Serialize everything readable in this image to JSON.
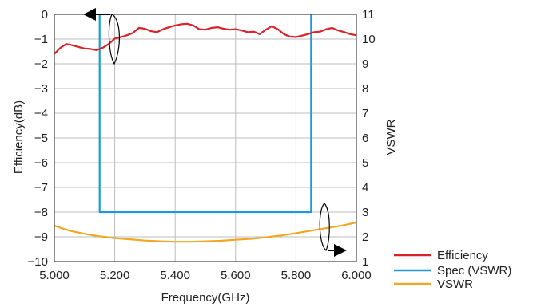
{
  "chart_data": {
    "type": "line",
    "xlabel": "Frequency(GHz)",
    "ylabel_left": "Efficiency(dB)",
    "ylabel_right": "VSWR",
    "xlim": [
      5.0,
      6.0
    ],
    "ylim_left": [
      -10,
      0
    ],
    "ylim_right": [
      1,
      11
    ],
    "grid": true,
    "legend_position": "bottom-right",
    "x_ticks": [
      "5.000",
      "5.200",
      "5.400",
      "5.600",
      "5.800",
      "6.000"
    ],
    "x_tick_values": [
      5.0,
      5.2,
      5.4,
      5.6,
      5.8,
      6.0
    ],
    "y_left_ticks": [
      "0",
      "−1",
      "−2",
      "−3",
      "−4",
      "−5",
      "−6",
      "−7",
      "−8",
      "−9",
      "−10"
    ],
    "y_left_tick_values": [
      0,
      -1,
      -2,
      -3,
      -4,
      -5,
      -6,
      -7,
      -8,
      -9,
      -10
    ],
    "y_right_ticks": [
      "11",
      "10",
      "9",
      "8",
      "7",
      "6",
      "5",
      "4",
      "3",
      "2",
      "1"
    ],
    "y_right_tick_values": [
      11,
      10,
      9,
      8,
      7,
      6,
      5,
      4,
      3,
      2,
      1
    ],
    "series": [
      {
        "name": "Efficiency",
        "axis": "left",
        "color": "#d9222a",
        "x": [
          5.0,
          5.02,
          5.04,
          5.06,
          5.08,
          5.1,
          5.12,
          5.14,
          5.16,
          5.18,
          5.2,
          5.22,
          5.24,
          5.26,
          5.28,
          5.3,
          5.32,
          5.34,
          5.36,
          5.38,
          5.4,
          5.42,
          5.44,
          5.46,
          5.48,
          5.5,
          5.52,
          5.54,
          5.56,
          5.58,
          5.6,
          5.62,
          5.64,
          5.66,
          5.68,
          5.7,
          5.72,
          5.74,
          5.76,
          5.78,
          5.8,
          5.82,
          5.84,
          5.86,
          5.88,
          5.9,
          5.92,
          5.94,
          5.96,
          5.98,
          6.0
        ],
        "y": [
          -1.6,
          -1.35,
          -1.2,
          -1.25,
          -1.32,
          -1.38,
          -1.4,
          -1.45,
          -1.35,
          -1.2,
          -0.98,
          -0.92,
          -0.85,
          -0.75,
          -0.55,
          -0.58,
          -0.68,
          -0.72,
          -0.6,
          -0.52,
          -0.45,
          -0.4,
          -0.38,
          -0.45,
          -0.6,
          -0.62,
          -0.55,
          -0.52,
          -0.58,
          -0.62,
          -0.6,
          -0.65,
          -0.72,
          -0.7,
          -0.8,
          -0.62,
          -0.48,
          -0.6,
          -0.8,
          -0.9,
          -0.92,
          -0.86,
          -0.8,
          -0.72,
          -0.7,
          -0.6,
          -0.55,
          -0.65,
          -0.72,
          -0.8,
          -0.85
        ]
      },
      {
        "name": "Spec (VSWR)",
        "axis": "right",
        "color": "#1f9ad6",
        "x": [
          5.15,
          5.15,
          5.85,
          5.85
        ],
        "y": [
          11,
          3,
          3,
          11
        ]
      },
      {
        "name": "VSWR",
        "axis": "right",
        "color": "#f0a824",
        "x": [
          5.0,
          5.05,
          5.1,
          5.15,
          5.2,
          5.25,
          5.3,
          5.35,
          5.4,
          5.45,
          5.5,
          5.55,
          5.6,
          5.65,
          5.7,
          5.75,
          5.8,
          5.85,
          5.9,
          5.95,
          6.0
        ],
        "y": [
          2.45,
          2.25,
          2.12,
          2.02,
          1.95,
          1.9,
          1.85,
          1.82,
          1.8,
          1.8,
          1.82,
          1.84,
          1.88,
          1.92,
          1.98,
          2.05,
          2.15,
          2.25,
          2.35,
          2.45,
          2.58
        ]
      }
    ]
  }
}
